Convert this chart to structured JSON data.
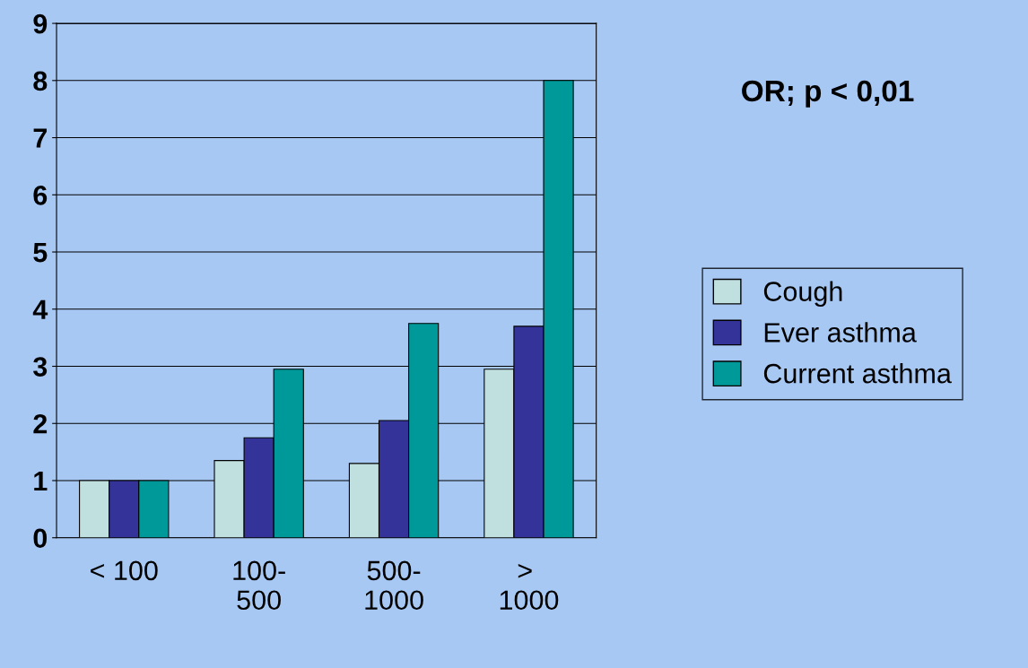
{
  "chart_data": {
    "type": "bar",
    "annotations": [
      "OR; p < 0,01"
    ],
    "categories": [
      "< 100",
      "100-\n500",
      "500-\n1000",
      "> \n1000"
    ],
    "series": [
      {
        "name": "Cough",
        "color": "#c0e0e0",
        "values": [
          1.0,
          1.35,
          1.3,
          2.95
        ]
      },
      {
        "name": "Ever asthma",
        "color": "#333399",
        "values": [
          1.0,
          1.75,
          2.05,
          3.7
        ]
      },
      {
        "name": "Current asthma",
        "color": "#009999",
        "values": [
          1.0,
          2.95,
          3.75,
          8.0
        ]
      }
    ],
    "ylim": [
      0,
      9
    ],
    "yticks": [
      0,
      1,
      2,
      3,
      4,
      5,
      6,
      7,
      8,
      9
    ],
    "grid": "y",
    "legend": "right"
  }
}
